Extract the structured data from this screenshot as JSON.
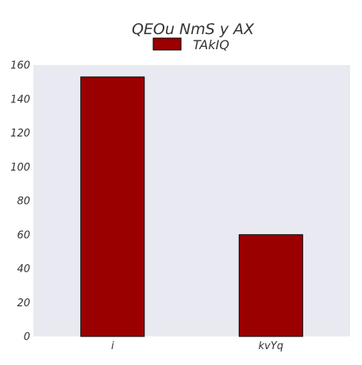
{
  "chart_data": {
    "type": "bar",
    "title": "QEOu NmS  y AX",
    "xlabel": "",
    "ylabel": "",
    "categories": [
      "i",
      "kvYq"
    ],
    "series": [
      {
        "name": "TAkIQ",
        "values": [
          153,
          60
        ],
        "color": "#9b0000"
      }
    ],
    "ylim": [
      0,
      160
    ],
    "yticks": [
      0,
      20,
      40,
      60,
      80,
      100,
      120,
      140,
      160
    ],
    "grid": false,
    "legend": "top-center",
    "colors": {
      "plot_background": "#e9e9f1",
      "bar": "#9b0000",
      "bar_edge": "#000000",
      "text": "#333333"
    }
  }
}
